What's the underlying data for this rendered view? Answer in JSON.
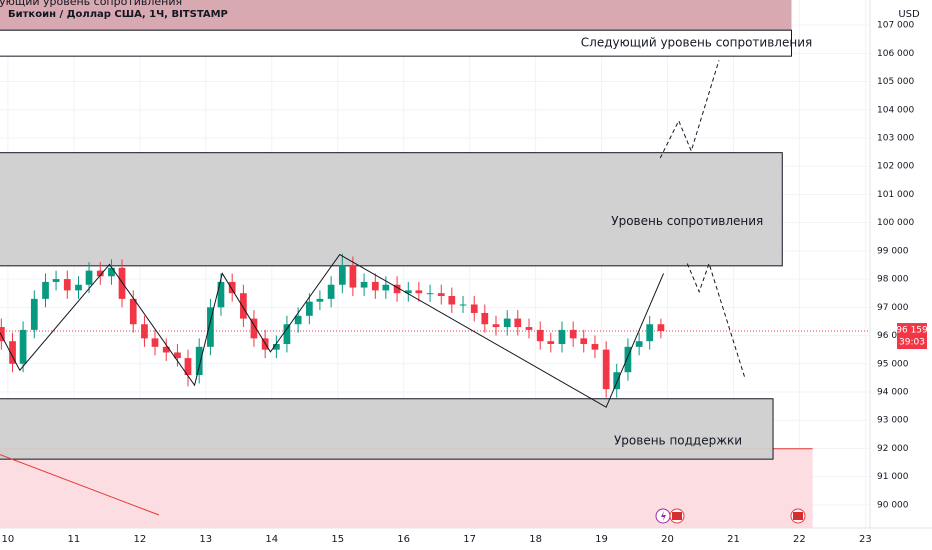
{
  "chart_data": {
    "type": "candlestick",
    "title": "Биткоин / Доллар США, 1Ч, BITSTAMP",
    "subtitle": "Следующий уровень сопротивления",
    "currency": "USD",
    "last_price": {
      "value": 96159,
      "label": "96 159"
    },
    "countdown": "39:03",
    "up_color": "#089981",
    "down_color": "#f23645",
    "xlim": [
      9.88,
      23.07
    ],
    "ylim": [
      89180,
      107890
    ],
    "xticks": [
      10,
      11,
      12,
      13,
      14,
      15,
      16,
      17,
      18,
      19,
      20,
      21,
      22,
      23
    ],
    "yticks": [
      {
        "value": 90000,
        "label": "90 000"
      },
      {
        "value": 91000,
        "label": "91 000"
      },
      {
        "value": 92000,
        "label": "92 000"
      },
      {
        "value": 93000,
        "label": "93 000"
      },
      {
        "value": 94000,
        "label": "94 000"
      },
      {
        "value": 95000,
        "label": "95 000"
      },
      {
        "value": 96000,
        "label": "96 000"
      },
      {
        "value": 97000,
        "label": "97 000"
      },
      {
        "value": 98000,
        "label": "98 000"
      },
      {
        "value": 99000,
        "label": "99 000"
      },
      {
        "value": 100000,
        "label": "100 000"
      },
      {
        "value": 101000,
        "label": "101 000"
      },
      {
        "value": 102000,
        "label": "102 000"
      },
      {
        "value": 103000,
        "label": "103 000"
      },
      {
        "value": 104000,
        "label": "104 000"
      },
      {
        "value": 105000,
        "label": "105 000"
      },
      {
        "value": 106000,
        "label": "106 000"
      },
      {
        "value": 107000,
        "label": "107 000"
      }
    ],
    "x": [
      9.9,
      10.07,
      10.23,
      10.4,
      10.57,
      10.73,
      10.9,
      11.07,
      11.23,
      11.4,
      11.57,
      11.73,
      11.9,
      12.07,
      12.23,
      12.4,
      12.57,
      12.73,
      12.9,
      13.07,
      13.23,
      13.4,
      13.57,
      13.73,
      13.9,
      14.07,
      14.23,
      14.4,
      14.57,
      14.73,
      14.9,
      15.07,
      15.23,
      15.4,
      15.57,
      15.73,
      15.9,
      16.07,
      16.23,
      16.4,
      16.57,
      16.73,
      16.9,
      17.07,
      17.23,
      17.4,
      17.57,
      17.73,
      17.9,
      18.07,
      18.23,
      18.4,
      18.57,
      18.73,
      18.9,
      19.07,
      19.23,
      19.4,
      19.57,
      19.73,
      19.9
    ],
    "open": [
      96300,
      95800,
      95000,
      96200,
      97300,
      97900,
      98000,
      97600,
      97800,
      98300,
      98100,
      98400,
      97300,
      96400,
      95900,
      95600,
      95400,
      95200,
      94600,
      95600,
      97000,
      97900,
      97500,
      96600,
      95900,
      95500,
      95700,
      96400,
      96700,
      97200,
      97300,
      97800,
      98500,
      97700,
      97900,
      97600,
      97800,
      97500,
      97600,
      97500,
      97500,
      97400,
      97100,
      97100,
      96800,
      96400,
      96300,
      96600,
      96300,
      96200,
      95800,
      95700,
      96200,
      95900,
      95700,
      95500,
      94100,
      94700,
      95600,
      95800,
      96400
    ],
    "high": [
      96600,
      96100,
      96500,
      97600,
      98200,
      98300,
      98300,
      98100,
      98600,
      98600,
      98700,
      98700,
      97600,
      96700,
      96200,
      95900,
      95700,
      95500,
      95900,
      97300,
      98200,
      98200,
      97800,
      96900,
      96200,
      96000,
      96700,
      97000,
      97500,
      97600,
      98100,
      98900,
      98800,
      98200,
      98200,
      98100,
      98100,
      97900,
      97900,
      97800,
      97800,
      97700,
      97400,
      97400,
      97100,
      96700,
      96900,
      96900,
      96600,
      96500,
      96100,
      96500,
      96500,
      96200,
      96000,
      95800,
      95000,
      95900,
      96100,
      96700,
      96600
    ],
    "low": [
      95500,
      94700,
      94700,
      95900,
      97000,
      97600,
      97300,
      97300,
      97500,
      97800,
      97800,
      97000,
      96100,
      95600,
      95300,
      95100,
      94900,
      94200,
      94300,
      95300,
      96700,
      97200,
      96300,
      95600,
      95200,
      95200,
      95400,
      96100,
      96400,
      96900,
      97000,
      97500,
      97400,
      97400,
      97300,
      97300,
      97200,
      97200,
      97200,
      97200,
      97100,
      96800,
      96800,
      96500,
      96100,
      96000,
      96000,
      96000,
      95900,
      95500,
      95400,
      95400,
      95600,
      95400,
      95200,
      93800,
      93800,
      94400,
      95300,
      95500,
      95900
    ],
    "close": [
      95800,
      95000,
      96200,
      97300,
      97900,
      98000,
      97600,
      97800,
      98300,
      98100,
      98400,
      97300,
      96400,
      95900,
      95600,
      95400,
      95200,
      94600,
      95600,
      97000,
      97900,
      97500,
      96600,
      95900,
      95500,
      95700,
      96400,
      96700,
      97200,
      97300,
      97800,
      98500,
      97700,
      97900,
      97600,
      97800,
      97500,
      97600,
      97500,
      97500,
      97400,
      97100,
      97100,
      96800,
      96400,
      96300,
      96600,
      96300,
      96200,
      95800,
      95700,
      96200,
      95900,
      95700,
      95500,
      94100,
      94700,
      95600,
      95800,
      96400,
      96159
    ],
    "red_zones": [
      {
        "x": [
          9.88,
          21.88
        ],
        "y": [
          106820,
          107890
        ]
      },
      {
        "x": [
          9.88,
          22.2
        ],
        "y": [
          89180,
          91990
        ]
      }
    ],
    "zones": [
      {
        "label": "Следующий уровень сопротивления",
        "x": [
          9.88,
          21.88
        ],
        "y": [
          105900,
          106820
        ]
      },
      {
        "label": "Уровень сопротивления",
        "x": [
          9.88,
          21.74
        ],
        "y": [
          98470,
          102480
        ]
      },
      {
        "label": "Уровень поддержки",
        "x": [
          9.88,
          21.6
        ],
        "y": [
          91620,
          93760
        ]
      }
    ],
    "trend_line": {
      "x": [
        9.88,
        10.18,
        11.54,
        12.83,
        13.25,
        13.98,
        15.03,
        19.07,
        19.94
      ],
      "y": [
        96100,
        94770,
        98520,
        94240,
        98200,
        95420,
        98870,
        93460,
        98200
      ]
    },
    "forecast_up": {
      "x": [
        19.89,
        20.17,
        20.36,
        20.78
      ],
      "y": [
        102290,
        103610,
        102540,
        105750
      ]
    },
    "forecast_down": {
      "x": [
        20.3,
        20.48,
        20.63,
        21.17
      ],
      "y": [
        98550,
        97550,
        98550,
        94520
      ]
    },
    "red_line": {
      "x": [
        9.88,
        12.29
      ],
      "y": [
        91780,
        89640
      ]
    }
  }
}
